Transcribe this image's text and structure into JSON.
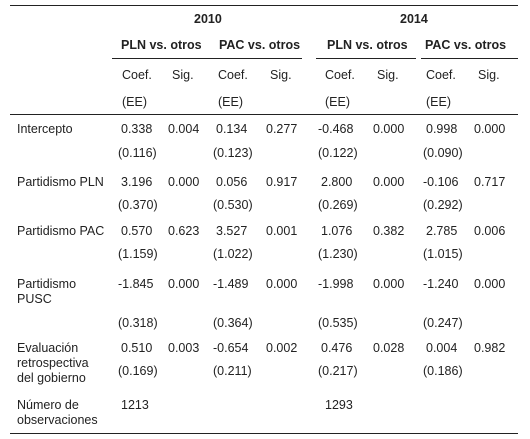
{
  "years": [
    "2010",
    "2014"
  ],
  "comparisons": [
    "PLN vs. otros",
    "PAC vs. otros",
    "PLN vs. otros",
    "PAC vs. otros"
  ],
  "col_headers": {
    "coef": "Coef.",
    "sig": "Sig.",
    "se": "(EE)"
  },
  "rows": [
    {
      "label": [
        "Intercepto"
      ],
      "coef": [
        "0.338",
        "0.134",
        "-0.468",
        "0.998"
      ],
      "sig": [
        "0.004",
        "0.277",
        "0.000",
        "0.000"
      ],
      "se": [
        "(0.116)",
        "(0.123)",
        "(0.122)",
        "(0.090)"
      ]
    },
    {
      "label": [
        "Partidismo PLN"
      ],
      "coef": [
        "3.196",
        "0.056",
        "2.800",
        "-0.106"
      ],
      "sig": [
        "0.000",
        "0.917",
        "0.000",
        "0.717"
      ],
      "se": [
        "(0.370)",
        "(0.530)",
        "(0.269)",
        "(0.292)"
      ]
    },
    {
      "label": [
        "Partidismo PAC"
      ],
      "coef": [
        "0.570",
        "3.527",
        "1.076",
        "2.785"
      ],
      "sig": [
        "0.623",
        "0.001",
        "0.382",
        "0.006"
      ],
      "se": [
        "(1.159)",
        "(1.022)",
        "(1.230)",
        "(1.015)"
      ]
    },
    {
      "label": [
        "Partidismo",
        "PUSC"
      ],
      "coef": [
        "-1.845",
        "-1.489",
        "-1.998",
        "-1.240"
      ],
      "sig": [
        "0.000",
        "0.000",
        "0.000",
        "0.000"
      ],
      "se": [
        "(0.318)",
        "(0.364)",
        "(0.535)",
        "(0.247)"
      ]
    },
    {
      "label": [
        "Evaluación",
        "retrospectiva",
        "del gobierno"
      ],
      "coef": [
        "0.510",
        "-0.654",
        "0.476",
        "0.004"
      ],
      "sig": [
        "0.003",
        "0.002",
        "0.028",
        "0.982"
      ],
      "se": [
        "(0.169)",
        "(0.211)",
        "(0.217)",
        "(0.186)"
      ]
    }
  ],
  "observations": {
    "label": [
      "Número de",
      "observaciones"
    ],
    "values": [
      "1213",
      "1293"
    ]
  }
}
